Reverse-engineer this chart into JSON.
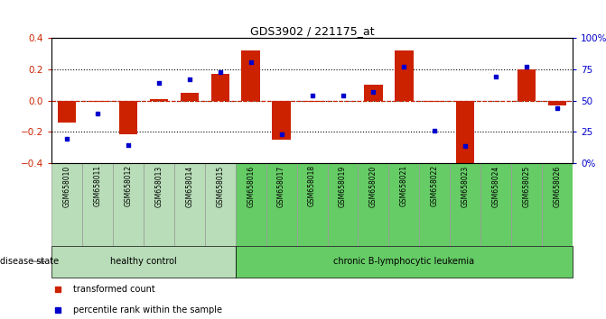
{
  "title": "GDS3902 / 221175_at",
  "samples": [
    "GSM658010",
    "GSM658011",
    "GSM658012",
    "GSM658013",
    "GSM658014",
    "GSM658015",
    "GSM658016",
    "GSM658017",
    "GSM658018",
    "GSM658019",
    "GSM658020",
    "GSM658021",
    "GSM658022",
    "GSM658023",
    "GSM658024",
    "GSM658025",
    "GSM658026"
  ],
  "red_bars": [
    -0.14,
    -0.01,
    -0.22,
    0.01,
    0.05,
    0.17,
    0.32,
    -0.25,
    -0.01,
    0.0,
    0.1,
    0.32,
    -0.01,
    -0.42,
    0.0,
    0.2,
    -0.03
  ],
  "blue_dots": [
    -0.245,
    -0.085,
    -0.285,
    0.115,
    0.135,
    0.185,
    0.245,
    -0.215,
    0.03,
    0.03,
    0.055,
    0.22,
    -0.195,
    -0.295,
    0.155,
    0.215,
    -0.05
  ],
  "ylim": [
    -0.4,
    0.4
  ],
  "yticks_left": [
    -0.4,
    -0.2,
    0.0,
    0.2,
    0.4
  ],
  "yticks_right_vals": [
    -0.4,
    -0.2,
    0.0,
    0.2,
    0.4
  ],
  "right_labels": [
    "0%",
    "25",
    "50",
    "75",
    "100%"
  ],
  "healthy_count": 6,
  "healthy_label": "healthy control",
  "leukemia_label": "chronic B-lymphocytic leukemia",
  "disease_state_label": "disease state",
  "legend_red": "transformed count",
  "legend_blue": "percentile rank within the sample",
  "bar_color": "#cc2200",
  "dot_color": "#0000cc",
  "healthy_bg": "#b8ddb8",
  "leukemia_bg": "#66cc66",
  "sample_cell_border": "#999999",
  "bar_width": 0.6
}
